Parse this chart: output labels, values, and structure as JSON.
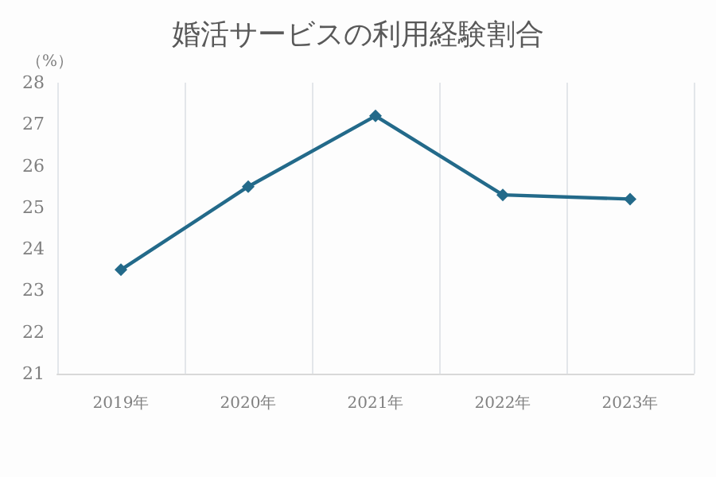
{
  "chart_data": {
    "type": "line",
    "title": "婚活サービスの利用経験割合",
    "ylabel": "（%）",
    "categories": [
      "2019年",
      "2020年",
      "2021年",
      "2022年",
      "2023年"
    ],
    "series": [
      {
        "color": "#236a8a",
        "values": [
          23.5,
          25.5,
          27.2,
          25.3,
          25.2
        ]
      }
    ],
    "ylim": [
      21,
      28
    ],
    "yticks": [
      21,
      22,
      23,
      24,
      25,
      26,
      27,
      28
    ],
    "grid": "x",
    "marker": "diamond",
    "line_style": "solid"
  }
}
